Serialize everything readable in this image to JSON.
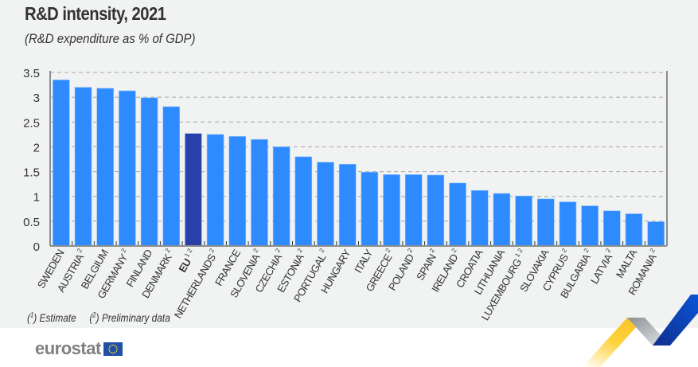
{
  "header": {
    "title": "R&D intensity, 2021",
    "subtitle": "(R&D expenditure as % of GDP)"
  },
  "footnotes": {
    "note1_marker": "1",
    "note1_text": " Estimate",
    "note2_marker": "2",
    "note2_text": " Preliminary data"
  },
  "brand": {
    "logo_text": "eurostat",
    "flag_icon": "eu-flag-icon"
  },
  "colors": {
    "bar": "#2e8bff",
    "highlight_bar": "#2840a8",
    "grid": "#a6a6a6",
    "axis": "#8c8c8c",
    "panel_bg": "#f1f2f2"
  },
  "chart_data": {
    "type": "bar",
    "title": "R&D intensity, 2021",
    "subtitle": "(R&D expenditure as % of GDP)",
    "xlabel": "",
    "ylabel": "",
    "ylim": [
      0,
      3.5
    ],
    "yticks": [
      0,
      0.5,
      1,
      1.5,
      2,
      2.5,
      3,
      3.5
    ],
    "ytick_labels": [
      "0",
      "0.5",
      "1",
      "1.5",
      "2",
      "2.5",
      "3",
      "3.5"
    ],
    "grid": true,
    "legend": "none",
    "categories": [
      "SWEDEN",
      "AUSTRIA",
      "BELGIUM",
      "GERMANY",
      "FINLAND",
      "DENMARK",
      "EU",
      "NETHERLANDS",
      "FRANCE",
      "SLOVENIA",
      "CZECHIA",
      "ESTONIA",
      "PORTUGAL",
      "HUNGARY",
      "ITALY",
      "GREECE",
      "POLAND",
      "SPAIN",
      "IRELAND",
      "CROATIA",
      "LITHUANIA",
      "LUXEMBOURG",
      "SLOVAKIA",
      "CYPRUS",
      "BULGARIA",
      "LATVIA",
      "MALTA",
      "ROMANIA"
    ],
    "category_notes": [
      "",
      "2",
      "",
      "2",
      "",
      "2",
      "1 2",
      "2",
      "",
      "2",
      "2",
      "2",
      "2",
      "",
      "",
      "2",
      "2",
      "2",
      "2",
      "",
      "",
      "1 2",
      "",
      "2",
      "2",
      "2",
      "",
      "2"
    ],
    "highlight": [
      "EU"
    ],
    "values": [
      3.35,
      3.2,
      3.18,
      3.13,
      2.99,
      2.81,
      2.27,
      2.25,
      2.21,
      2.15,
      2.0,
      1.8,
      1.69,
      1.65,
      1.49,
      1.44,
      1.44,
      1.43,
      1.27,
      1.12,
      1.06,
      1.01,
      0.95,
      0.89,
      0.81,
      0.71,
      0.65,
      0.49
    ]
  }
}
